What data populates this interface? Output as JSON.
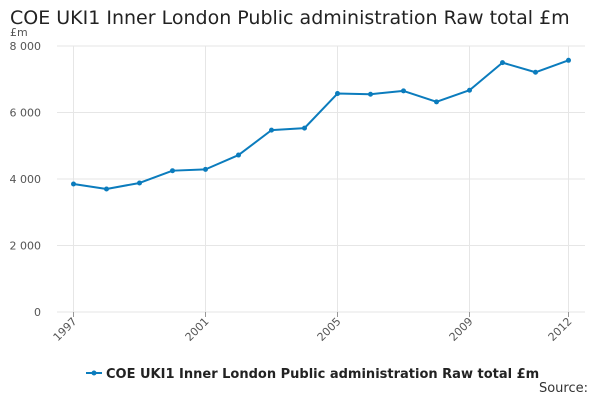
{
  "title": "COE UKI1 Inner London Public administration Raw total £m",
  "source_label": "Source:",
  "colors": {
    "series": "#0b7cbd",
    "grid": "#e6e6e6",
    "axis_text": "#555555"
  },
  "chart_data": {
    "type": "line",
    "title": "COE UKI1 Inner London Public administration Raw total £m",
    "xlabel": "",
    "ylabel": "£m",
    "x": [
      1997,
      1998,
      1999,
      2000,
      2001,
      2002,
      2003,
      2004,
      2005,
      2006,
      2007,
      2008,
      2009,
      2010,
      2011,
      2012
    ],
    "x_ticks": [
      "1997",
      "2001",
      "2005",
      "2009",
      "2012"
    ],
    "ylim": [
      0,
      8000
    ],
    "y_ticks": [
      0,
      2000,
      4000,
      6000,
      8000
    ],
    "y_tick_labels": [
      "0",
      "2 000",
      "4 000",
      "6 000",
      "8 000"
    ],
    "grid": true,
    "legend_position": "bottom",
    "series": [
      {
        "name": "COE UKI1 Inner London Public administration Raw total £m",
        "values": [
          3850,
          3700,
          3880,
          4250,
          4290,
          4720,
          5470,
          5530,
          6570,
          6550,
          6650,
          6320,
          6670,
          7500,
          7210,
          7570
        ]
      }
    ]
  }
}
